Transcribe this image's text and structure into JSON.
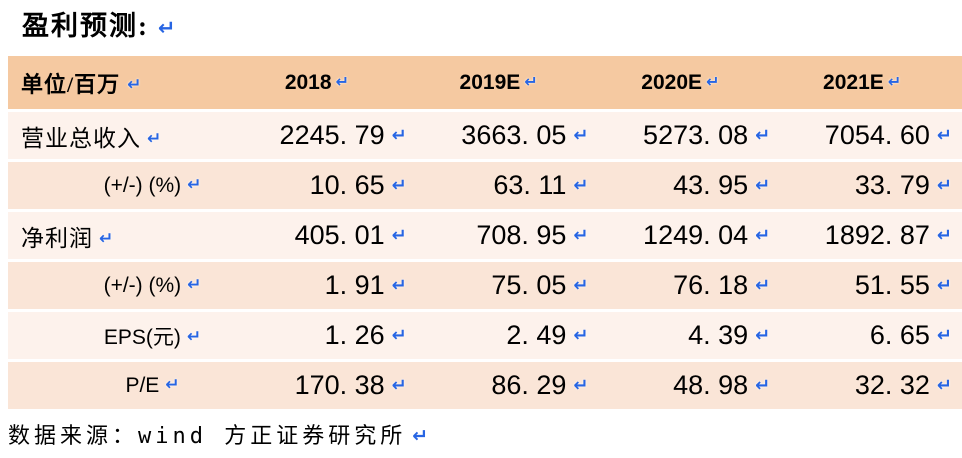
{
  "pm": "↵",
  "title": {
    "text": "盈利预测:"
  },
  "table": {
    "unit_label": "单位/百万",
    "columns": [
      "2018",
      "2019E",
      "2020E",
      "2021E"
    ],
    "rows": [
      {
        "label": "营业总收入",
        "values": [
          "2245. 79",
          "3663. 05",
          "5273. 08",
          "7054. 60"
        ]
      },
      {
        "label": "(+/-) (%)",
        "values": [
          "10. 65",
          "63. 11",
          "43. 95",
          "33. 79"
        ]
      },
      {
        "label": "净利润",
        "values": [
          "405. 01",
          "708. 95",
          "1249. 04",
          "1892. 87"
        ]
      },
      {
        "label": "(+/-) (%)",
        "values": [
          "1. 91",
          "75. 05",
          "76. 18",
          "51. 55"
        ]
      },
      {
        "label": "EPS(元)",
        "values": [
          "1. 26",
          "2. 49",
          "4. 39",
          "6. 65"
        ]
      },
      {
        "label": "P/E",
        "values": [
          "170. 38",
          "86. 29",
          "48. 98",
          "32. 32"
        ]
      }
    ]
  },
  "footer": {
    "text": "数据来源：wind 方正证券研究所"
  },
  "colors": {
    "header_bg": "#F5C9A1",
    "row_light_bg": "#FDF2EC",
    "row_dark_bg": "#FAE5D7",
    "mark_blue": "#2765E3",
    "text": "#000000",
    "page_bg": "#FFFFFF"
  }
}
